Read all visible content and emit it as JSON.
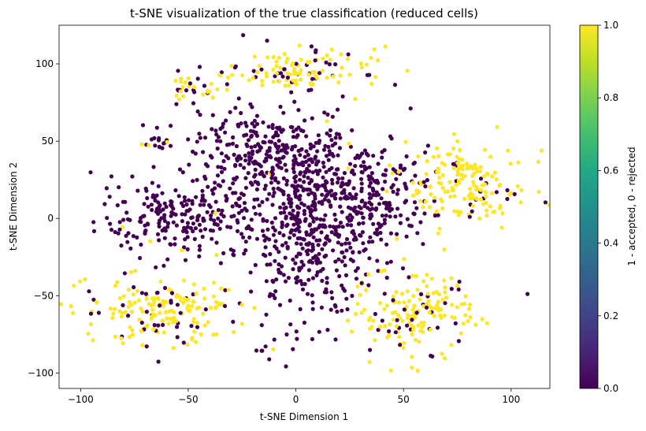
{
  "chart_data": {
    "type": "scatter",
    "title": "t-SNE visualization of the true classification (reduced cells)",
    "xlabel": "t-SNE Dimension 1",
    "ylabel": "t-SNE Dimension 2",
    "xlim": [
      -110,
      118
    ],
    "ylim": [
      -110,
      125
    ],
    "xticks": [
      -100,
      -50,
      0,
      50,
      100
    ],
    "yticks": [
      -100,
      -50,
      0,
      50,
      100
    ],
    "grid": false,
    "colorbar": {
      "label": "1 - accepted, 0 - rejected",
      "colormap": "viridis",
      "range": [
        0.0,
        1.0
      ],
      "ticks": [
        "0.0",
        "0.2",
        "0.4",
        "0.6",
        "0.8",
        "1.0"
      ]
    },
    "colors": {
      "rejected": "#440154",
      "accepted": "#fde725"
    },
    "clusters": [
      {
        "name": "center-purple",
        "cx": 5,
        "cy": -5,
        "rx": 30,
        "ry": 55,
        "value": 0,
        "mix": 0.0
      },
      {
        "name": "upper-center-purple",
        "cx": -15,
        "cy": 40,
        "rx": 35,
        "ry": 30,
        "value": 0,
        "mix": 0.02
      },
      {
        "name": "left-purple",
        "cx": -55,
        "cy": 0,
        "rx": 35,
        "ry": 22,
        "value": 0,
        "mix": 0.02
      },
      {
        "name": "right-center-purple",
        "cx": 35,
        "cy": 15,
        "rx": 25,
        "ry": 30,
        "value": 0,
        "mix": 0.02
      },
      {
        "name": "top-yellow",
        "cx": 0,
        "cy": 95,
        "rx": 30,
        "ry": 15,
        "value": 1,
        "mix": 0.25
      },
      {
        "name": "top-left-yellow",
        "cx": -45,
        "cy": 85,
        "rx": 12,
        "ry": 10,
        "value": 1,
        "mix": 0.3
      },
      {
        "name": "right-yellow",
        "cx": 80,
        "cy": 20,
        "rx": 25,
        "ry": 25,
        "value": 1,
        "mix": 0.15
      },
      {
        "name": "bottom-right-yellow",
        "cx": 55,
        "cy": -60,
        "rx": 25,
        "ry": 25,
        "value": 1,
        "mix": 0.2
      },
      {
        "name": "bottom-left-yellow",
        "cx": -60,
        "cy": -60,
        "rx": 35,
        "ry": 20,
        "value": 1,
        "mix": 0.2
      },
      {
        "name": "small-left-purple",
        "cx": -65,
        "cy": 50,
        "rx": 8,
        "ry": 8,
        "value": 0,
        "mix": 0.05
      },
      {
        "name": "bottom-small-purple",
        "cx": -15,
        "cy": -85,
        "rx": 5,
        "ry": 3,
        "value": 0,
        "mix": 0.2
      }
    ]
  }
}
